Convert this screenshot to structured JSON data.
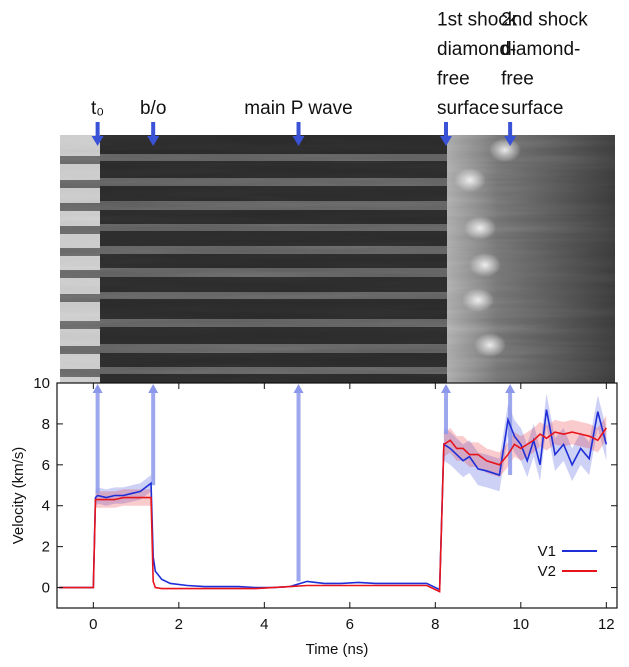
{
  "chart_data": {
    "type": "line",
    "xlabel": "Time (ns)",
    "ylabel": "Velocity (km/s)",
    "xlim": [
      -0.85,
      12.25
    ],
    "ylim": [
      -1,
      10
    ],
    "xticks": [
      0,
      2,
      4,
      6,
      8,
      10,
      12
    ],
    "yticks": [
      0,
      2,
      4,
      6,
      8,
      10
    ],
    "legend": "lower right",
    "x": [
      -0.8,
      -0.4,
      0,
      0.05,
      0.1,
      0.3,
      0.5,
      0.7,
      0.9,
      1.1,
      1.35,
      1.4,
      1.45,
      1.6,
      1.8,
      2.2,
      2.6,
      3.0,
      3.4,
      3.8,
      4.2,
      4.6,
      5.0,
      5.4,
      5.8,
      6.2,
      6.6,
      7.0,
      7.4,
      7.8,
      8.1,
      8.2,
      8.35,
      8.5,
      8.65,
      8.8,
      9.0,
      9.2,
      9.5,
      9.7,
      9.85,
      10.0,
      10.15,
      10.3,
      10.45,
      10.6,
      10.8,
      11.0,
      11.2,
      11.4,
      11.6,
      11.8,
      12.0
    ],
    "series": [
      {
        "name": "V1",
        "color": "#1f2fd8",
        "values": [
          0,
          0,
          0,
          4.4,
          4.5,
          4.4,
          4.5,
          4.5,
          4.6,
          4.7,
          5.1,
          1.5,
          0.8,
          0.4,
          0.2,
          0.1,
          0.05,
          0.05,
          0.05,
          0,
          0,
          0.05,
          0.3,
          0.2,
          0.2,
          0.25,
          0.2,
          0.2,
          0.2,
          0.2,
          -0.1,
          7.0,
          6.8,
          6.5,
          6.2,
          6.4,
          5.8,
          5.7,
          5.5,
          8.2,
          7.4,
          7.0,
          6.2,
          7.2,
          6.0,
          8.7,
          6.5,
          7.0,
          6.0,
          6.8,
          6.3,
          8.6,
          7.0
        ],
        "errors": [
          0,
          0,
          0,
          0.4,
          0.4,
          0.4,
          0.4,
          0.4,
          0.4,
          0.4,
          0.4,
          0,
          0,
          0,
          0,
          0,
          0,
          0,
          0,
          0,
          0,
          0,
          0,
          0,
          0,
          0,
          0,
          0,
          0,
          0,
          0,
          0.8,
          0.8,
          0.8,
          0.8,
          0.8,
          0.8,
          0.8,
          0.8,
          0.8,
          0.8,
          0.8,
          0.8,
          0.8,
          0.8,
          0.8,
          0.8,
          0.8,
          0.8,
          0.8,
          0.8,
          0.8,
          0.8
        ]
      },
      {
        "name": "V2",
        "color": "#e8141c",
        "values": [
          0,
          0,
          0,
          4.3,
          4.3,
          4.3,
          4.3,
          4.4,
          4.4,
          4.4,
          4.4,
          0.3,
          0,
          -0.05,
          -0.05,
          -0.05,
          -0.05,
          -0.05,
          -0.05,
          -0.05,
          0,
          0.05,
          0.1,
          0.1,
          0.1,
          0.1,
          0.1,
          0.1,
          0.1,
          0.1,
          -0.2,
          7.0,
          7.2,
          6.8,
          6.8,
          6.5,
          6.5,
          6.2,
          6.0,
          6.5,
          7.0,
          6.8,
          7.0,
          7.2,
          7.5,
          7.3,
          7.6,
          7.5,
          7.6,
          7.5,
          7.4,
          7.2,
          7.8
        ],
        "errors": [
          0,
          0,
          0,
          0.4,
          0.4,
          0.4,
          0.4,
          0.4,
          0.4,
          0.4,
          0.4,
          0,
          0,
          0,
          0,
          0,
          0,
          0,
          0,
          0,
          0,
          0,
          0,
          0,
          0,
          0,
          0,
          0,
          0,
          0,
          0,
          0.6,
          0.6,
          0.6,
          0.6,
          0.6,
          0.6,
          0.6,
          0.6,
          0.6,
          0.6,
          0.6,
          0.6,
          0.6,
          0.6,
          0.6,
          0.6,
          0.6,
          0.6,
          0.6,
          0.6,
          0.6,
          0.6
        ]
      }
    ],
    "annotations": [
      {
        "lines": [
          "t₀"
        ],
        "x": 0.1,
        "y_from": 4.6
      },
      {
        "lines": [
          "b/o"
        ],
        "x": 1.4,
        "y_from": 5.0
      },
      {
        "lines": [
          "main P wave"
        ],
        "x": 4.8,
        "y_from": 0.3
      },
      {
        "lines": [
          "1st shock",
          "diamond-",
          "free",
          "surface"
        ],
        "x": 8.25,
        "y_from": 7.5
      },
      {
        "lines": [
          "2nd shock",
          "diamond-",
          "free",
          "surface"
        ],
        "x": 9.75,
        "y_from": 5.5
      }
    ]
  }
}
